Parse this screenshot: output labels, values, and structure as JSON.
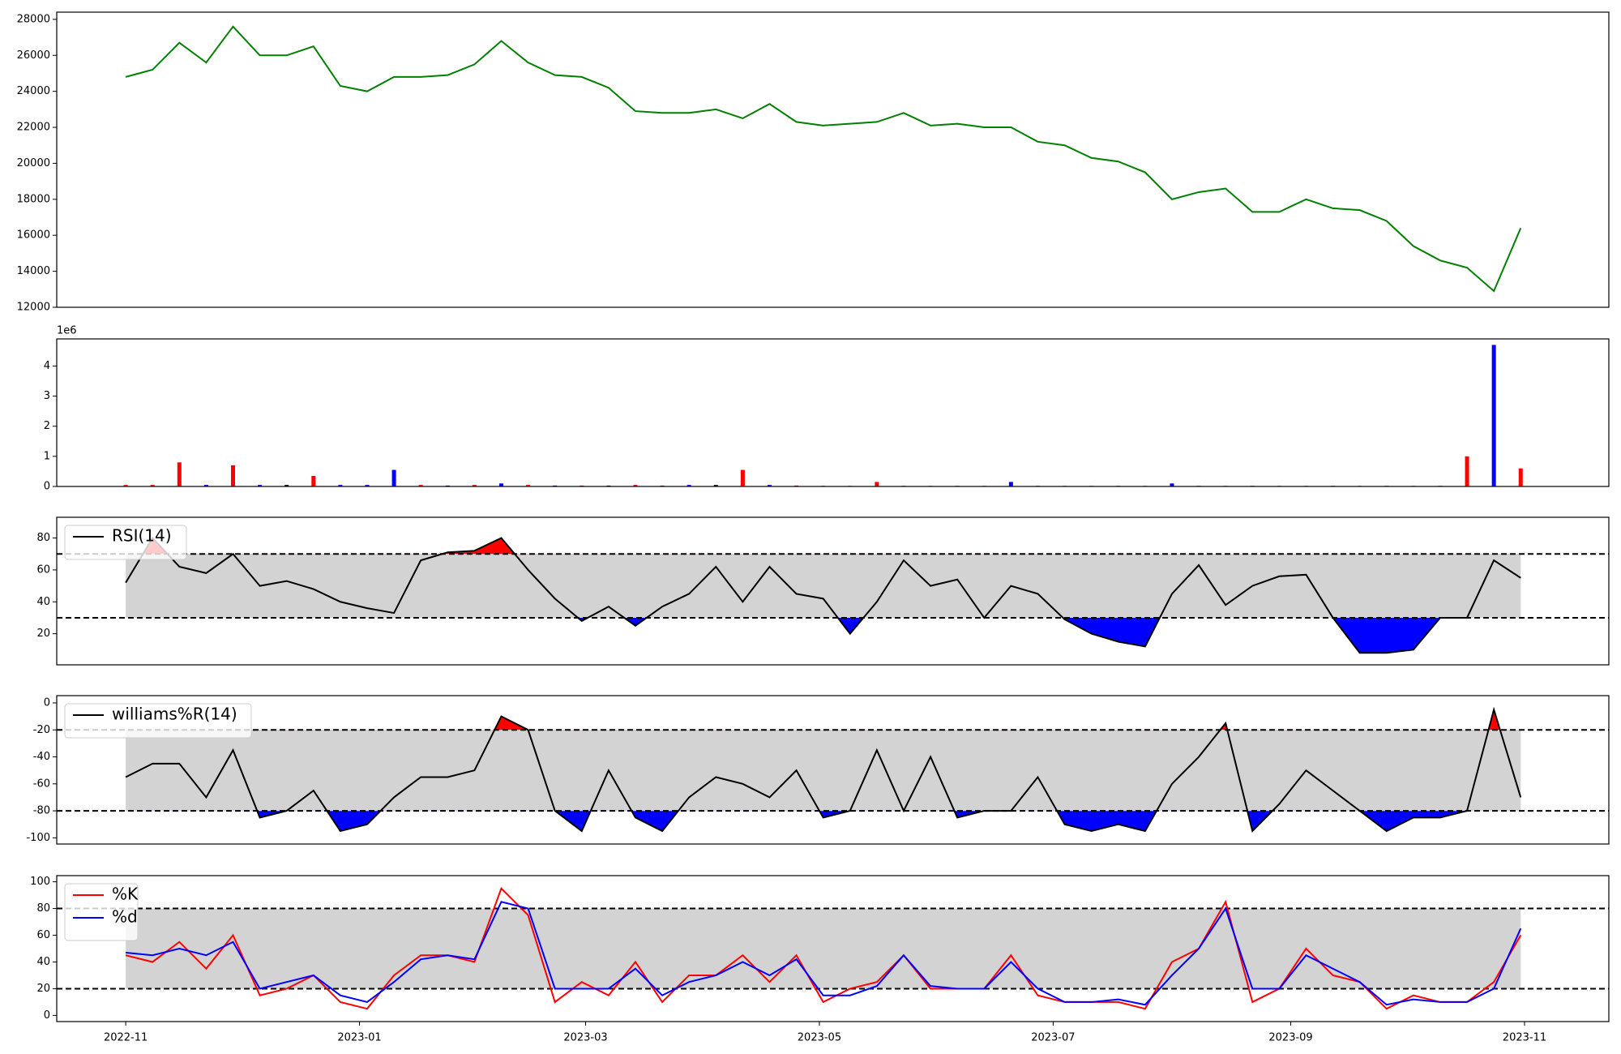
{
  "chart_data": [
    {
      "type": "line",
      "xlim": [
        "2022-10-14",
        "2023-11-23"
      ],
      "ylim": [
        12000,
        28400
      ],
      "yticks": [
        12000,
        14000,
        16000,
        18000,
        20000,
        22000,
        24000,
        26000,
        28000
      ],
      "x": [
        "2022-11-01",
        "2022-11-08",
        "2022-11-15",
        "2022-11-22",
        "2022-11-29",
        "2022-12-06",
        "2022-12-13",
        "2022-12-20",
        "2022-12-27",
        "2023-01-03",
        "2023-01-10",
        "2023-01-17",
        "2023-01-24",
        "2023-01-31",
        "2023-02-07",
        "2023-02-14",
        "2023-02-21",
        "2023-02-28",
        "2023-03-07",
        "2023-03-14",
        "2023-03-21",
        "2023-03-28",
        "2023-04-04",
        "2023-04-11",
        "2023-04-18",
        "2023-04-25",
        "2023-05-02",
        "2023-05-09",
        "2023-05-16",
        "2023-05-23",
        "2023-05-30",
        "2023-06-06",
        "2023-06-13",
        "2023-06-20",
        "2023-06-27",
        "2023-07-04",
        "2023-07-11",
        "2023-07-18",
        "2023-07-25",
        "2023-08-01",
        "2023-08-08",
        "2023-08-15",
        "2023-08-22",
        "2023-08-29",
        "2023-09-05",
        "2023-09-12",
        "2023-09-19",
        "2023-09-26",
        "2023-10-03",
        "2023-10-10",
        "2023-10-17",
        "2023-10-24",
        "2023-10-31"
      ],
      "series": [
        {
          "color": "green",
          "values": [
            24800,
            25200,
            26700,
            25600,
            27600,
            26000,
            26000,
            26500,
            24300,
            24000,
            24800,
            24800,
            24900,
            25500,
            26800,
            25600,
            24900,
            24800,
            24200,
            22900,
            22800,
            22800,
            23000,
            22500,
            23300,
            22300,
            22100,
            22200,
            22300,
            22800,
            22100,
            22200,
            22000,
            22000,
            21200,
            21000,
            20300,
            20100,
            19500,
            18000,
            18400,
            18600,
            17300,
            17300,
            18000,
            17500,
            17400,
            16800,
            15400,
            14600,
            14200,
            12900,
            16400
          ]
        }
      ]
    },
    {
      "type": "bar",
      "xlim": [
        "2022-10-14",
        "2023-11-23"
      ],
      "ylim": [
        0,
        4.9
      ],
      "yticks": [
        0,
        1,
        2,
        3,
        4
      ],
      "offset_label": "1e6",
      "x": [
        "2022-11-01",
        "2022-11-08",
        "2022-11-15",
        "2022-11-22",
        "2022-11-29",
        "2022-12-06",
        "2022-12-13",
        "2022-12-20",
        "2022-12-27",
        "2023-01-03",
        "2023-01-10",
        "2023-01-17",
        "2023-01-24",
        "2023-01-31",
        "2023-02-07",
        "2023-02-14",
        "2023-02-21",
        "2023-02-28",
        "2023-03-07",
        "2023-03-14",
        "2023-03-21",
        "2023-03-28",
        "2023-04-04",
        "2023-04-11",
        "2023-04-18",
        "2023-04-25",
        "2023-05-02",
        "2023-05-09",
        "2023-05-16",
        "2023-05-23",
        "2023-05-30",
        "2023-06-06",
        "2023-06-13",
        "2023-06-20",
        "2023-06-27",
        "2023-07-04",
        "2023-07-11",
        "2023-07-18",
        "2023-07-25",
        "2023-08-01",
        "2023-08-08",
        "2023-08-15",
        "2023-08-22",
        "2023-08-29",
        "2023-09-05",
        "2023-09-12",
        "2023-09-19",
        "2023-09-26",
        "2023-10-03",
        "2023-10-10",
        "2023-10-17",
        "2023-10-24",
        "2023-10-31"
      ],
      "series": [
        {
          "values": [
            0.05,
            0.05,
            0.8,
            0.05,
            0.7,
            0.05,
            0.05,
            0.35,
            0.05,
            0.05,
            0.55,
            0.05,
            0.03,
            0.05,
            0.1,
            0.05,
            0.03,
            0.03,
            0.03,
            0.05,
            0.03,
            0.05,
            0.05,
            0.55,
            0.05,
            0.03,
            0.02,
            0.02,
            0.15,
            0.02,
            0.02,
            0.02,
            0.02,
            0.15,
            0.02,
            0.02,
            0.02,
            0.02,
            0.02,
            0.1,
            0.02,
            0.02,
            0.02,
            0.02,
            0.02,
            0.02,
            0.02,
            0.02,
            0.02,
            0.02,
            1.0,
            4.7,
            0.6
          ],
          "colors": [
            "red",
            "red",
            "red",
            "blue",
            "red",
            "blue",
            "black",
            "red",
            "blue",
            "blue",
            "blue",
            "red",
            "blue",
            "red",
            "blue",
            "red",
            "blue",
            "red",
            "blue",
            "red",
            "red",
            "blue",
            "black",
            "red",
            "blue",
            "red",
            "blue",
            "red",
            "red",
            "blue",
            "red",
            "blue",
            "red",
            "blue",
            "blue",
            "red",
            "red",
            "blue",
            "red",
            "blue",
            "blue",
            "red",
            "blue",
            "red",
            "red",
            "blue",
            "red",
            "blue",
            "red",
            "blue",
            "red",
            "blue",
            "red"
          ]
        }
      ]
    },
    {
      "type": "line",
      "xlim": [
        "2022-10-14",
        "2023-11-23"
      ],
      "ylim": [
        0.5,
        93
      ],
      "yticks": [
        20,
        40,
        60,
        80
      ],
      "bands": {
        "lower": 30,
        "upper": 70,
        "mid_color": "lightgray",
        "above_color": "red",
        "below_color": "blue"
      },
      "legend": "upper left",
      "x": [
        "2022-11-01",
        "2022-11-08",
        "2022-11-15",
        "2022-11-22",
        "2022-11-29",
        "2022-12-06",
        "2022-12-13",
        "2022-12-20",
        "2022-12-27",
        "2023-01-03",
        "2023-01-10",
        "2023-01-17",
        "2023-01-24",
        "2023-01-31",
        "2023-02-07",
        "2023-02-14",
        "2023-02-21",
        "2023-02-28",
        "2023-03-07",
        "2023-03-14",
        "2023-03-21",
        "2023-03-28",
        "2023-04-04",
        "2023-04-11",
        "2023-04-18",
        "2023-04-25",
        "2023-05-02",
        "2023-05-09",
        "2023-05-16",
        "2023-05-23",
        "2023-05-30",
        "2023-06-06",
        "2023-06-13",
        "2023-06-20",
        "2023-06-27",
        "2023-07-04",
        "2023-07-11",
        "2023-07-18",
        "2023-07-25",
        "2023-08-01",
        "2023-08-08",
        "2023-08-15",
        "2023-08-22",
        "2023-08-29",
        "2023-09-05",
        "2023-09-12",
        "2023-09-19",
        "2023-09-26",
        "2023-10-03",
        "2023-10-10",
        "2023-10-17",
        "2023-10-24",
        "2023-10-31"
      ],
      "series": [
        {
          "name": "RSI(14)",
          "color": "black",
          "values": [
            52,
            80,
            62,
            58,
            70,
            50,
            53,
            48,
            40,
            36,
            33,
            66,
            71,
            72,
            80,
            60,
            42,
            28,
            37,
            25,
            37,
            45,
            62,
            40,
            62,
            45,
            42,
            20,
            40,
            66,
            50,
            54,
            30,
            50,
            45,
            29,
            20,
            15,
            12,
            45,
            63,
            38,
            50,
            56,
            57,
            30,
            8,
            8,
            10,
            30,
            30,
            66,
            55
          ]
        }
      ]
    },
    {
      "type": "line",
      "xlim": [
        "2022-10-14",
        "2023-11-23"
      ],
      "ylim": [
        -104.6,
        5.4
      ],
      "yticks": [
        -100,
        -80,
        -60,
        -40,
        -20,
        0
      ],
      "bands": {
        "lower": -80,
        "upper": -20,
        "mid_color": "lightgray",
        "above_color": "red",
        "below_color": "blue"
      },
      "legend": "upper left",
      "x": [
        "2022-11-01",
        "2022-11-08",
        "2022-11-15",
        "2022-11-22",
        "2022-11-29",
        "2022-12-06",
        "2022-12-13",
        "2022-12-20",
        "2022-12-27",
        "2023-01-03",
        "2023-01-10",
        "2023-01-17",
        "2023-01-24",
        "2023-01-31",
        "2023-02-07",
        "2023-02-14",
        "2023-02-21",
        "2023-02-28",
        "2023-03-07",
        "2023-03-14",
        "2023-03-21",
        "2023-03-28",
        "2023-04-04",
        "2023-04-11",
        "2023-04-18",
        "2023-04-25",
        "2023-05-02",
        "2023-05-09",
        "2023-05-16",
        "2023-05-23",
        "2023-05-30",
        "2023-06-06",
        "2023-06-13",
        "2023-06-20",
        "2023-06-27",
        "2023-07-04",
        "2023-07-11",
        "2023-07-18",
        "2023-07-25",
        "2023-08-01",
        "2023-08-08",
        "2023-08-15",
        "2023-08-22",
        "2023-08-29",
        "2023-09-05",
        "2023-09-12",
        "2023-09-19",
        "2023-09-26",
        "2023-10-03",
        "2023-10-10",
        "2023-10-17",
        "2023-10-24",
        "2023-10-31"
      ],
      "series": [
        {
          "name": "williams%R(14)",
          "color": "black",
          "values": [
            -55,
            -45,
            -45,
            -70,
            -35,
            -85,
            -80,
            -65,
            -95,
            -90,
            -70,
            -55,
            -55,
            -50,
            -10,
            -20,
            -80,
            -95,
            -50,
            -85,
            -95,
            -70,
            -55,
            -60,
            -70,
            -50,
            -85,
            -80,
            -35,
            -80,
            -40,
            -85,
            -80,
            -80,
            -55,
            -90,
            -95,
            -90,
            -95,
            -60,
            -40,
            -15,
            -95,
            -75,
            -50,
            -65,
            -80,
            -95,
            -85,
            -85,
            -80,
            -5,
            -70
          ]
        }
      ]
    },
    {
      "type": "line",
      "xlim": [
        "2022-10-14",
        "2023-11-23"
      ],
      "ylim": [
        -4.6,
        104.6
      ],
      "yticks": [
        0,
        20,
        40,
        60,
        80,
        100
      ],
      "xticks": [
        {
          "value": "2022-11-01",
          "label": "2022-11"
        },
        {
          "value": "2023-01-01",
          "label": "2023-01"
        },
        {
          "value": "2023-03-01",
          "label": "2023-03"
        },
        {
          "value": "2023-05-01",
          "label": "2023-05"
        },
        {
          "value": "2023-07-01",
          "label": "2023-07"
        },
        {
          "value": "2023-09-01",
          "label": "2023-09"
        },
        {
          "value": "2023-11-01",
          "label": "2023-11"
        }
      ],
      "bands": {
        "lower": 20,
        "upper": 80,
        "mid_color": "lightgray"
      },
      "legend": "upper left",
      "x": [
        "2022-11-01",
        "2022-11-08",
        "2022-11-15",
        "2022-11-22",
        "2022-11-29",
        "2022-12-06",
        "2022-12-13",
        "2022-12-20",
        "2022-12-27",
        "2023-01-03",
        "2023-01-10",
        "2023-01-17",
        "2023-01-24",
        "2023-01-31",
        "2023-02-07",
        "2023-02-14",
        "2023-02-21",
        "2023-02-28",
        "2023-03-07",
        "2023-03-14",
        "2023-03-21",
        "2023-03-28",
        "2023-04-04",
        "2023-04-11",
        "2023-04-18",
        "2023-04-25",
        "2023-05-02",
        "2023-05-09",
        "2023-05-16",
        "2023-05-23",
        "2023-05-30",
        "2023-06-06",
        "2023-06-13",
        "2023-06-20",
        "2023-06-27",
        "2023-07-04",
        "2023-07-11",
        "2023-07-18",
        "2023-07-25",
        "2023-08-01",
        "2023-08-08",
        "2023-08-15",
        "2023-08-22",
        "2023-08-29",
        "2023-09-05",
        "2023-09-12",
        "2023-09-19",
        "2023-09-26",
        "2023-10-03",
        "2023-10-10",
        "2023-10-17",
        "2023-10-24",
        "2023-10-31"
      ],
      "series": [
        {
          "name": "%K",
          "color": "red",
          "values": [
            45,
            40,
            55,
            35,
            60,
            15,
            20,
            30,
            10,
            5,
            30,
            45,
            45,
            40,
            95,
            75,
            10,
            25,
            15,
            40,
            10,
            30,
            30,
            45,
            25,
            45,
            10,
            20,
            25,
            45,
            20,
            20,
            20,
            45,
            15,
            10,
            10,
            10,
            5,
            40,
            50,
            85,
            10,
            20,
            50,
            30,
            25,
            5,
            15,
            10,
            10,
            25,
            60
          ]
        },
        {
          "name": "%d",
          "color": "blue",
          "values": [
            47,
            45,
            50,
            45,
            55,
            20,
            25,
            30,
            15,
            10,
            25,
            42,
            45,
            42,
            85,
            80,
            20,
            20,
            20,
            35,
            15,
            25,
            30,
            40,
            30,
            42,
            15,
            15,
            22,
            45,
            22,
            20,
            20,
            40,
            20,
            10,
            10,
            12,
            8,
            30,
            50,
            80,
            20,
            20,
            45,
            35,
            25,
            8,
            12,
            10,
            10,
            20,
            65
          ]
        }
      ]
    }
  ]
}
